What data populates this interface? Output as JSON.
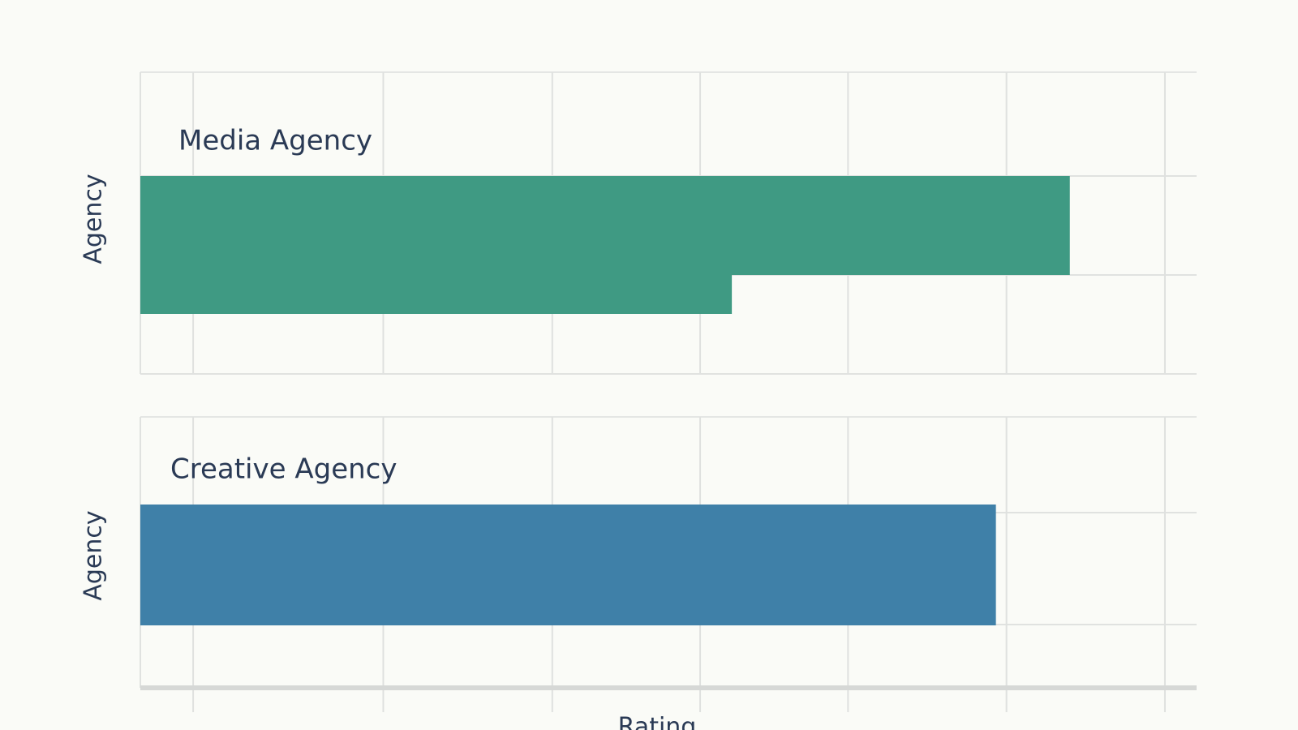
{
  "chart_data": [
    {
      "type": "bar",
      "orientation": "horizontal",
      "title": "Media Agency",
      "ylabel": "Agency",
      "categories": [
        null,
        null
      ],
      "values": [
        88,
        56
      ],
      "color": "#3f9a83",
      "xlim": [
        0,
        100
      ],
      "xticks": [
        5,
        23,
        39,
        53,
        67,
        82,
        97
      ],
      "grid": true
    },
    {
      "type": "bar",
      "orientation": "horizontal",
      "title": "Creative Agency",
      "ylabel": "Agency",
      "xlabel": "Rating",
      "categories": [
        null
      ],
      "values": [
        81
      ],
      "color": "#3f80a8",
      "xlim": [
        0,
        100
      ],
      "xticks": [
        5,
        23,
        39,
        53,
        67,
        82,
        97
      ],
      "grid": true
    }
  ]
}
